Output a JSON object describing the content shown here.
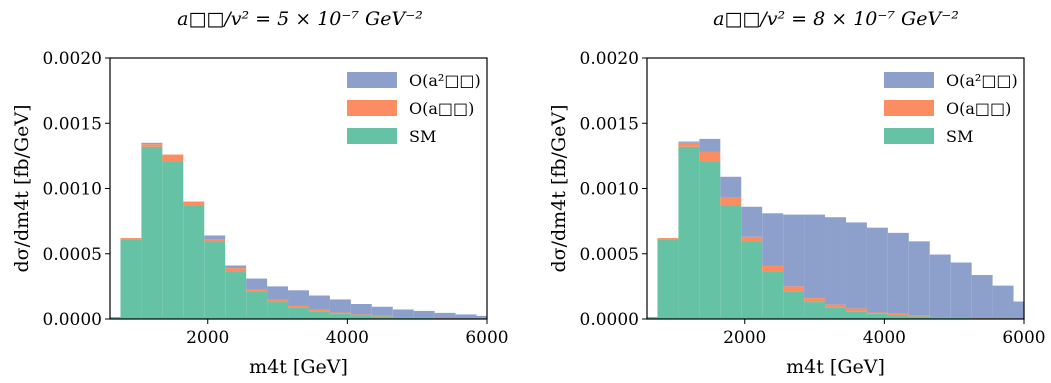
{
  "chart_data": [
    {
      "type": "bar",
      "stacked": true,
      "title": "a□□/v² = 5 × 10⁻⁷ GeV⁻²",
      "xlabel": "m4t [GeV]",
      "ylabel": "dσ/dm4t [fb/GeV]",
      "xlim": [
        600,
        6000
      ],
      "ylim": [
        0,
        0.002
      ],
      "xticks": [
        "2000",
        "4000",
        "6000"
      ],
      "yticks": [
        "0.0000",
        "0.0005",
        "0.0010",
        "0.0015",
        "0.0020"
      ],
      "bin_edges": [
        750,
        1050,
        1350,
        1650,
        1950,
        2250,
        2550,
        2850,
        3150,
        3450,
        3750,
        4050,
        4350,
        4650,
        4950,
        5250,
        5550,
        5850,
        6150
      ],
      "legend": "top-right",
      "grid": false,
      "series": [
        {
          "name": "SM",
          "color": "#66c2a5",
          "values": [
            0.00061,
            0.00132,
            0.00121,
            0.00087,
            0.00059,
            0.00036,
            0.00021,
            0.00013,
            9e-05,
            6e-05,
            4e-05,
            3e-05,
            2e-05,
            1e-05,
            1e-05,
            5e-06,
            4e-06,
            3e-06
          ]
        },
        {
          "name": "O(a□□)",
          "color": "#fc8d62",
          "values": [
            1e-05,
            2e-05,
            5e-05,
            3e-05,
            2e-05,
            3e-05,
            2e-05,
            2e-05,
            1e-05,
            1e-05,
            1e-05,
            5e-06,
            4e-06,
            3e-06,
            2e-06,
            2e-06,
            1e-06,
            1e-06
          ]
        },
        {
          "name": "O(a²□□)",
          "color": "#8da0cb",
          "values": [
            0,
            1e-05,
            0,
            0,
            3e-05,
            2e-05,
            8e-05,
            0.0001,
            0.00012,
            0.00011,
            0.0001,
            8e-05,
            7e-05,
            6e-05,
            5e-05,
            4e-05,
            3e-05,
            2e-05
          ]
        }
      ]
    },
    {
      "type": "bar",
      "stacked": true,
      "title": "a□□/v² = 8 × 10⁻⁷ GeV⁻²",
      "xlabel": "m4t [GeV]",
      "ylabel": "dσ/dm4t [fb/GeV]",
      "xlim": [
        600,
        6000
      ],
      "ylim": [
        0,
        0.002
      ],
      "xticks": [
        "2000",
        "4000",
        "6000"
      ],
      "yticks": [
        "0.0000",
        "0.0005",
        "0.0010",
        "0.0015",
        "0.0020"
      ],
      "bin_edges": [
        750,
        1050,
        1350,
        1650,
        1950,
        2250,
        2550,
        2850,
        3150,
        3450,
        3750,
        4050,
        4350,
        4650,
        4950,
        5250,
        5550,
        5850,
        6150
      ],
      "legend": "top-right",
      "grid": false,
      "series": [
        {
          "name": "SM",
          "color": "#66c2a5",
          "values": [
            0.00061,
            0.00132,
            0.00121,
            0.00087,
            0.00059,
            0.00036,
            0.00021,
            0.00013,
            9e-05,
            6e-05,
            4e-05,
            3e-05,
            2e-05,
            1e-05,
            1e-05,
            5e-06,
            4e-06,
            3e-06
          ]
        },
        {
          "name": "O(a□□)",
          "color": "#fc8d62",
          "values": [
            1e-05,
            3e-05,
            7e-05,
            6e-05,
            4e-05,
            5e-05,
            4e-05,
            3e-05,
            2e-05,
            2e-05,
            1e-05,
            1e-05,
            5e-06,
            4e-06,
            3e-06,
            2e-06,
            2e-06,
            1e-06
          ]
        },
        {
          "name": "O(a²□□)",
          "color": "#8da0cb",
          "values": [
            0,
            1e-05,
            0.0001,
            0.00016,
            0.00023,
            0.0004,
            0.00055,
            0.00064,
            0.00067,
            0.00066,
            0.00065,
            0.00062,
            0.00057,
            0.00048,
            0.00042,
            0.00033,
            0.00025,
            0.00013
          ]
        }
      ]
    }
  ]
}
